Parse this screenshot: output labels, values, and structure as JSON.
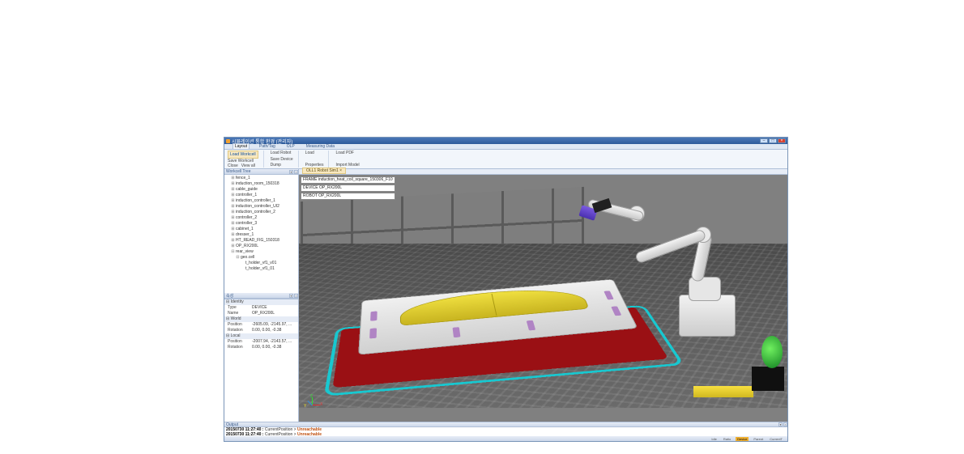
{
  "window": {
    "title": "시뮬레이션 통합 환경 (관리자)",
    "buttons": {
      "min": "–",
      "max": "□",
      "close": "×"
    },
    "titlebar_bg": "#2d5a9a"
  },
  "ribbon": {
    "tabs": [
      "Layout",
      "Path/Tag",
      "OLP",
      "Measuring Data"
    ],
    "active_tab": "Layout",
    "groups": [
      {
        "main": "Load Workcell",
        "items": [
          "Save Workcell",
          "Close",
          "View all"
        ]
      },
      {
        "main": "",
        "items": [
          "Load Robot",
          "Save Device",
          "Dump"
        ]
      },
      {
        "main": "",
        "items": [
          "Load",
          "Properties",
          ""
        ]
      },
      {
        "main": "Load PDF",
        "items": [
          "Import Model"
        ]
      }
    ]
  },
  "panels": {
    "tree_title": "Workcell Tree",
    "props_title": "속성",
    "output_title": "Output"
  },
  "tree": [
    {
      "label": "fence_1",
      "indent": 1,
      "exp": "⊞"
    },
    {
      "label": "induction_room_150318",
      "indent": 1,
      "exp": "⊞"
    },
    {
      "label": "cable_guide",
      "indent": 1,
      "exp": "⊞"
    },
    {
      "label": "controller_1",
      "indent": 1,
      "exp": "⊞"
    },
    {
      "label": "induction_controller_1",
      "indent": 1,
      "exp": "⊞"
    },
    {
      "label": "induction_controller_UI2",
      "indent": 1,
      "exp": "⊞"
    },
    {
      "label": "induction_controller_2",
      "indent": 1,
      "exp": "⊞"
    },
    {
      "label": "controller_2",
      "indent": 1,
      "exp": "⊞"
    },
    {
      "label": "controller_3",
      "indent": 1,
      "exp": "⊞"
    },
    {
      "label": "cabinet_1",
      "indent": 1,
      "exp": "⊞"
    },
    {
      "label": "dresser_1",
      "indent": 1,
      "exp": "⊞"
    },
    {
      "label": "HT_READ_FIG_150318",
      "indent": 1,
      "exp": "⊞"
    },
    {
      "label": "OP_RX200L",
      "indent": 1,
      "exp": "⊞"
    },
    {
      "label": "rear_view",
      "indent": 1,
      "exp": "⊟"
    },
    {
      "label": "geo.cell",
      "indent": 2,
      "exp": "⊟"
    },
    {
      "label": "t_holder_vf1_v01",
      "indent": 3,
      "exp": ""
    },
    {
      "label": "t_holder_vf1_01",
      "indent": 3,
      "exp": ""
    }
  ],
  "properties": {
    "groups": [
      {
        "name": "Identity",
        "rows": [
          {
            "k": "Type",
            "v": "DEVICE"
          },
          {
            "k": "Name",
            "v": "OP_RX200L"
          }
        ]
      },
      {
        "name": "World",
        "rows": [
          {
            "k": "Position",
            "v": "-2605.09, -2145.97, ..."
          },
          {
            "k": "Rotation",
            "v": "0.00, 0.00, -0.38"
          }
        ]
      },
      {
        "name": "Local",
        "rows": [
          {
            "k": "Position",
            "v": "-2007.94, -2143.57, ..."
          },
          {
            "k": "Rotation",
            "v": "0.00, 0.00, -0.38"
          }
        ]
      }
    ]
  },
  "doc_tab": "OLL1 Robot Sim1 ×",
  "overlay": {
    "frame": "FRAME  induction_heat_coil_square_150306_F10",
    "device": "DEVICE  OP_RX200L",
    "robot": "ROBOT  OP_RX200L"
  },
  "scene": {
    "background": "#808080",
    "floor_color": "#555555",
    "pad_color": "#9a1014",
    "pad_border_color": "#18c8d0",
    "fixture_color": "#e8e8e8",
    "panel_color": "#e8d030",
    "robot_color": "#eaeaea",
    "tool_color": "#5a3ed0",
    "accent_magenta": "#b084c4",
    "accent_green": "#30c830",
    "gizmo": {
      "x": "X",
      "y": "Y",
      "z": "Z"
    }
  },
  "output": [
    {
      "ts": "20150730 11:27:40 :",
      "msg": "CurrentPosition > ",
      "tag": "Unreachable"
    },
    {
      "ts": "20150730 11:27:40 :",
      "msg": "CurrentPosition > ",
      "tag": "Unreachable"
    }
  ],
  "status": [
    "Idle",
    "Ratio",
    "",
    "Device",
    "Parent",
    "CurrentT"
  ]
}
